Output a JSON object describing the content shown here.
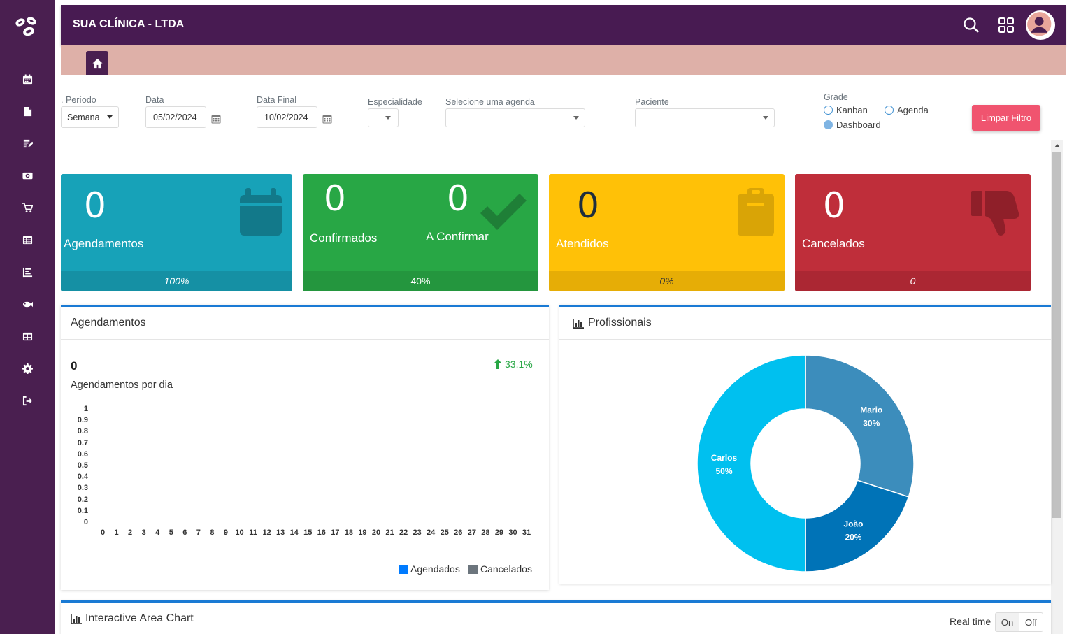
{
  "header": {
    "title": "SUA CLÍNICA - LTDA"
  },
  "sidebar": {
    "icons": [
      "calendar-icon",
      "file-icon",
      "edit-document-icon",
      "money-icon",
      "cart-icon",
      "table-icon",
      "bar-chart-icon",
      "fish-icon",
      "grid-icon",
      "gear-icon",
      "logout-icon"
    ]
  },
  "filters": {
    "periodo_label": ". Período",
    "periodo_value": "Semana",
    "data_label": "Data",
    "data_value": "05/02/2024",
    "data_final_label": "Data Final",
    "data_final_value": "10/02/2024",
    "especialidade_label": "Especialidade",
    "agenda_label": "Selecione uma agenda",
    "paciente_label": "Paciente",
    "grade_label": "Grade",
    "grade_options": [
      "Kanban",
      "Agenda",
      "Dashboard"
    ],
    "grade_selected": "Dashboard",
    "clear_button": "Limpar Filtro"
  },
  "cards": [
    {
      "value": "0",
      "label": "Agendamentos",
      "footer": "100%",
      "color": "#17a2b8"
    },
    {
      "value": "0",
      "label": "Confirmados",
      "value2": "0",
      "label2": "A Confirmar",
      "footer": "40%",
      "color": "#28a745"
    },
    {
      "value": "0",
      "label": "Atendidos",
      "footer": "0%",
      "color": "#ffc107"
    },
    {
      "value": "0",
      "label": "Cancelados",
      "footer": "0",
      "color": "#bf2e3a"
    }
  ],
  "agendamentos_panel": {
    "title": "Agendamentos",
    "total": "0",
    "subtitle": "Agendamentos por dia",
    "change": "33.1%",
    "chart_data": {
      "type": "bar",
      "x": [
        0,
        1,
        2,
        3,
        4,
        5,
        6,
        7,
        8,
        9,
        10,
        11,
        12,
        13,
        14,
        15,
        16,
        17,
        18,
        19,
        20,
        21,
        22,
        23,
        24,
        25,
        26,
        27,
        28,
        29,
        30,
        31
      ],
      "y_ticks": [
        "1",
        "0.9",
        "0.8",
        "0.7",
        "0.6",
        "0.5",
        "0.4",
        "0.3",
        "0.2",
        "0.1",
        "0"
      ],
      "ylim": [
        0,
        1
      ],
      "series": [
        {
          "name": "Agendados",
          "color": "#007bff",
          "values": [
            0,
            0,
            0,
            0,
            0,
            0,
            0,
            0,
            0,
            0,
            0,
            0,
            0,
            0,
            0,
            0,
            0,
            0,
            0,
            0,
            0,
            0,
            0,
            0,
            0,
            0,
            0,
            0,
            0,
            0,
            0,
            0
          ]
        },
        {
          "name": "Cancelados",
          "color": "#6c757d",
          "values": [
            0,
            0,
            0,
            0,
            0,
            0,
            0,
            0,
            0,
            0,
            0,
            0,
            0,
            0,
            0,
            0,
            0,
            0,
            0,
            0,
            0,
            0,
            0,
            0,
            0,
            0,
            0,
            0,
            0,
            0,
            0,
            0
          ]
        }
      ],
      "legend": "bottom-right"
    }
  },
  "profissionais_panel": {
    "title": "Profissionais",
    "chart_data": {
      "type": "pie",
      "donut": true,
      "slices": [
        {
          "name": "Mario",
          "value": 30,
          "label": "30%",
          "color": "#3c8dbc"
        },
        {
          "name": "João",
          "value": 20,
          "label": "20%",
          "color": "#0073b7"
        },
        {
          "name": "Carlos",
          "value": 50,
          "label": "50%",
          "color": "#00c0ef"
        }
      ]
    }
  },
  "area_panel": {
    "title": "Interactive Area Chart",
    "realtime_label": "Real time",
    "on_label": "On",
    "off_label": "Off"
  }
}
